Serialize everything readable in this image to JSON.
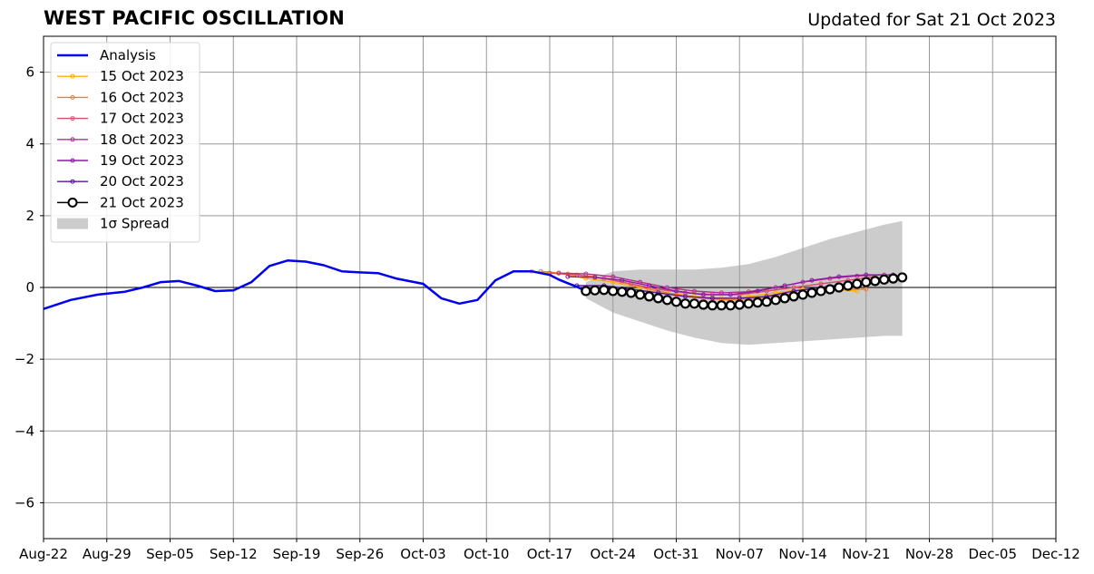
{
  "header": {
    "title": "WEST PACIFIC OSCILLATION",
    "updated": "Updated for Sat 21 Oct 2023"
  },
  "chart_data": {
    "type": "line",
    "title": "WEST PACIFIC OSCILLATION",
    "subtitle": "Updated for Sat 21 Oct 2023",
    "xlabel": "",
    "ylabel": "",
    "x_axis": {
      "start": "2023-08-22",
      "end": "2023-12-12",
      "tick_labels": [
        "Aug-22",
        "Aug-29",
        "Sep-05",
        "Sep-12",
        "Sep-19",
        "Sep-26",
        "Oct-03",
        "Oct-10",
        "Oct-17",
        "Oct-24",
        "Oct-31",
        "Nov-07",
        "Nov-14",
        "Nov-21",
        "Nov-28",
        "Dec-05",
        "Dec-12"
      ]
    },
    "y_axis": {
      "ylim": [
        -7,
        7
      ],
      "ticks": [
        -6,
        -4,
        -2,
        0,
        2,
        4,
        6
      ],
      "tick_labels": [
        "−6",
        "−4",
        "−2",
        "0",
        "2",
        "4",
        "6"
      ]
    },
    "grid": true,
    "legend_position": "top-left",
    "analysis": {
      "name": "Analysis",
      "color": "#0000ee",
      "x": [
        "2023-08-22",
        "2023-08-25",
        "2023-08-28",
        "2023-08-31",
        "2023-09-02",
        "2023-09-04",
        "2023-09-06",
        "2023-09-08",
        "2023-09-10",
        "2023-09-12",
        "2023-09-14",
        "2023-09-16",
        "2023-09-18",
        "2023-09-20",
        "2023-09-22",
        "2023-09-24",
        "2023-09-26",
        "2023-09-28",
        "2023-09-30",
        "2023-10-03",
        "2023-10-05",
        "2023-10-07",
        "2023-10-09",
        "2023-10-11",
        "2023-10-13",
        "2023-10-15",
        "2023-10-16",
        "2023-10-17",
        "2023-10-18",
        "2023-10-19",
        "2023-10-20",
        "2023-10-21"
      ],
      "values": [
        -0.6,
        -0.35,
        -0.2,
        -0.12,
        0.0,
        0.15,
        0.18,
        0.05,
        -0.1,
        -0.08,
        0.15,
        0.6,
        0.75,
        0.72,
        0.62,
        0.45,
        0.42,
        0.4,
        0.25,
        0.1,
        -0.3,
        -0.45,
        -0.35,
        0.2,
        0.45,
        0.45,
        0.4,
        0.35,
        0.22,
        0.12,
        0.02,
        -0.1
      ]
    },
    "forecasts": [
      {
        "name": "15 Oct 2023",
        "color": "#ffb000",
        "x": [
          "2023-10-15",
          "2023-10-18",
          "2023-10-21",
          "2023-10-24",
          "2023-10-27",
          "2023-10-30",
          "2023-11-02",
          "2023-11-05",
          "2023-11-08",
          "2023-11-11",
          "2023-11-14",
          "2023-11-17",
          "2023-11-20"
        ],
        "values": [
          0.45,
          0.4,
          0.25,
          0.15,
          0.0,
          -0.15,
          -0.25,
          -0.3,
          -0.25,
          -0.15,
          -0.05,
          -0.05,
          -0.1
        ]
      },
      {
        "name": "16 Oct 2023",
        "color": "#f47f32",
        "x": [
          "2023-10-16",
          "2023-10-19",
          "2023-10-22",
          "2023-10-25",
          "2023-10-28",
          "2023-10-31",
          "2023-11-03",
          "2023-11-06",
          "2023-11-09",
          "2023-11-12",
          "2023-11-15",
          "2023-11-18",
          "2023-11-21"
        ],
        "values": [
          0.45,
          0.38,
          0.3,
          0.15,
          -0.05,
          -0.2,
          -0.3,
          -0.35,
          -0.3,
          -0.2,
          -0.1,
          -0.05,
          -0.05
        ]
      },
      {
        "name": "17 Oct 2023",
        "color": "#de4c6a",
        "x": [
          "2023-10-17",
          "2023-10-20",
          "2023-10-23",
          "2023-10-26",
          "2023-10-29",
          "2023-11-01",
          "2023-11-04",
          "2023-11-07",
          "2023-11-10",
          "2023-11-13",
          "2023-11-16",
          "2023-11-19",
          "2023-11-22"
        ],
        "values": [
          0.4,
          0.35,
          0.25,
          0.1,
          -0.05,
          -0.15,
          -0.2,
          -0.2,
          -0.1,
          0.0,
          0.1,
          0.2,
          0.3
        ]
      },
      {
        "name": "18 Oct 2023",
        "color": "#b6308b",
        "x": [
          "2023-10-18",
          "2023-10-21",
          "2023-10-24",
          "2023-10-27",
          "2023-10-30",
          "2023-11-02",
          "2023-11-05",
          "2023-11-08",
          "2023-11-11",
          "2023-11-14",
          "2023-11-17",
          "2023-11-20",
          "2023-11-23"
        ],
        "values": [
          0.4,
          0.38,
          0.3,
          0.15,
          0.0,
          -0.1,
          -0.15,
          -0.12,
          0.0,
          0.15,
          0.25,
          0.32,
          0.35
        ]
      },
      {
        "name": "19 Oct 2023",
        "color": "#8a1aa6",
        "x": [
          "2023-10-19",
          "2023-10-22",
          "2023-10-25",
          "2023-10-28",
          "2023-10-31",
          "2023-11-03",
          "2023-11-06",
          "2023-11-09",
          "2023-11-12",
          "2023-11-15",
          "2023-11-18",
          "2023-11-21",
          "2023-11-24"
        ],
        "values": [
          0.3,
          0.28,
          0.2,
          0.05,
          -0.1,
          -0.2,
          -0.2,
          -0.1,
          0.05,
          0.2,
          0.3,
          0.35,
          0.35
        ]
      },
      {
        "name": "20 Oct 2023",
        "color": "#5a1496",
        "x": [
          "2023-10-20",
          "2023-10-23",
          "2023-10-26",
          "2023-10-29",
          "2023-11-01",
          "2023-11-04",
          "2023-11-07",
          "2023-11-10",
          "2023-11-13",
          "2023-11-16",
          "2023-11-19",
          "2023-11-22",
          "2023-11-25"
        ],
        "values": [
          0.05,
          0.05,
          -0.05,
          -0.15,
          -0.25,
          -0.3,
          -0.3,
          -0.25,
          -0.1,
          0.0,
          0.1,
          0.2,
          0.25
        ]
      },
      {
        "name": "21 Oct 2023",
        "color": "#000000",
        "x": [
          "2023-10-21",
          "2023-10-22",
          "2023-10-23",
          "2023-10-24",
          "2023-10-25",
          "2023-10-26",
          "2023-10-27",
          "2023-10-28",
          "2023-10-29",
          "2023-10-30",
          "2023-10-31",
          "2023-11-01",
          "2023-11-02",
          "2023-11-03",
          "2023-11-04",
          "2023-11-05",
          "2023-11-06",
          "2023-11-07",
          "2023-11-08",
          "2023-11-09",
          "2023-11-10",
          "2023-11-11",
          "2023-11-12",
          "2023-11-13",
          "2023-11-14",
          "2023-11-15",
          "2023-11-16",
          "2023-11-17",
          "2023-11-18",
          "2023-11-19",
          "2023-11-20",
          "2023-11-21",
          "2023-11-22",
          "2023-11-23",
          "2023-11-24",
          "2023-11-25"
        ],
        "values": [
          -0.1,
          -0.08,
          -0.07,
          -0.1,
          -0.12,
          -0.15,
          -0.2,
          -0.25,
          -0.3,
          -0.35,
          -0.4,
          -0.45,
          -0.45,
          -0.48,
          -0.5,
          -0.5,
          -0.5,
          -0.48,
          -0.45,
          -0.42,
          -0.4,
          -0.35,
          -0.3,
          -0.25,
          -0.2,
          -0.15,
          -0.1,
          -0.05,
          0.0,
          0.05,
          0.1,
          0.15,
          0.18,
          0.22,
          0.25,
          0.28
        ]
      }
    ],
    "spread": {
      "name": "1σ Spread",
      "color": "#cccccc",
      "x": [
        "2023-10-21",
        "2023-10-24",
        "2023-10-27",
        "2023-10-30",
        "2023-11-02",
        "2023-11-05",
        "2023-11-08",
        "2023-11-11",
        "2023-11-14",
        "2023-11-17",
        "2023-11-20",
        "2023-11-23",
        "2023-11-25"
      ],
      "upper": [
        0.15,
        0.45,
        0.5,
        0.5,
        0.5,
        0.55,
        0.65,
        0.85,
        1.1,
        1.35,
        1.55,
        1.75,
        1.85
      ],
      "lower": [
        -0.3,
        -0.7,
        -0.95,
        -1.2,
        -1.4,
        -1.55,
        -1.6,
        -1.55,
        -1.5,
        -1.45,
        -1.4,
        -1.35,
        -1.35
      ]
    },
    "legend": {
      "entries": [
        "Analysis",
        "15 Oct 2023",
        "16 Oct 2023",
        "17 Oct 2023",
        "18 Oct 2023",
        "19 Oct 2023",
        "20 Oct 2023",
        "21 Oct 2023",
        "1σ Spread"
      ]
    }
  }
}
